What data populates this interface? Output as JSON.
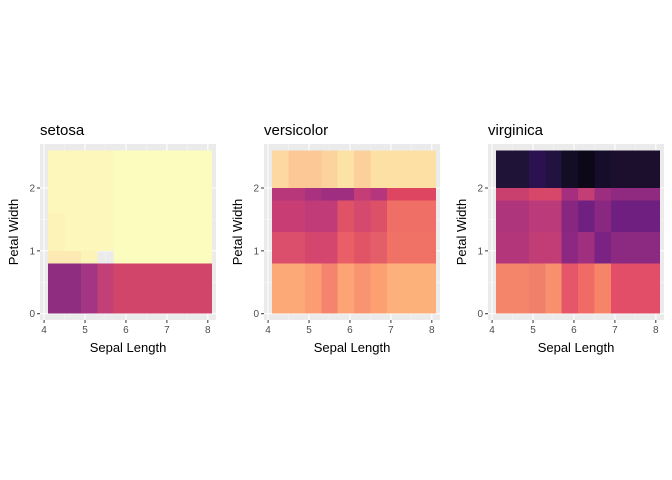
{
  "chart_data": [
    {
      "type": "heatmap",
      "title": "setosa",
      "xlabel": "Sepal Length",
      "ylabel": "Petal Width",
      "xticks": [
        4,
        5,
        6,
        7,
        8
      ],
      "yticks": [
        0,
        1,
        2
      ],
      "xlim": [
        3.9,
        8.2
      ],
      "ylim": [
        -0.1,
        2.7
      ],
      "x_bins": [
        4.1,
        4.5,
        4.9,
        5.3,
        5.7,
        6.1,
        6.5,
        6.9,
        7.3,
        7.7,
        8.1
      ],
      "y_bins": [
        0.8,
        1.3,
        1.8,
        2.6
      ],
      "grid": true,
      "cells": [
        {
          "x0": 4.1,
          "x1": 4.9,
          "y0": 0.0,
          "y1": 0.8,
          "color": "#8f2d81"
        },
        {
          "x0": 4.9,
          "x1": 5.3,
          "y0": 0.0,
          "y1": 0.8,
          "color": "#a33584"
        },
        {
          "x0": 5.3,
          "x1": 5.7,
          "y0": 0.0,
          "y1": 0.8,
          "color": "#c33f78"
        },
        {
          "x0": 5.7,
          "x1": 8.1,
          "y0": 0.0,
          "y1": 0.8,
          "color": "#d2456a"
        },
        {
          "x0": 4.1,
          "x1": 4.9,
          "y0": 0.8,
          "y1": 1.0,
          "color": "#fde9b3"
        },
        {
          "x0": 4.9,
          "x1": 5.3,
          "y0": 0.8,
          "y1": 1.0,
          "color": "#fcf3b8"
        },
        {
          "x0": 4.1,
          "x1": 4.5,
          "y0": 1.0,
          "y1": 1.6,
          "color": "#fdf2b7"
        },
        {
          "x0": 4.5,
          "x1": 5.7,
          "y0": 1.0,
          "y1": 1.6,
          "color": "#fdf7bb"
        },
        {
          "x0": 4.1,
          "x1": 5.7,
          "y0": 1.6,
          "y1": 2.6,
          "color": "#fdf7bb"
        },
        {
          "x0": 5.7,
          "x1": 8.1,
          "y0": 0.8,
          "y1": 2.6,
          "color": "#fdfcbf"
        }
      ]
    },
    {
      "type": "heatmap",
      "title": "versicolor",
      "xlabel": "Sepal Length",
      "ylabel": "Petal Width",
      "xticks": [
        4,
        5,
        6,
        7,
        8
      ],
      "yticks": [
        0,
        1,
        2
      ],
      "xlim": [
        3.9,
        8.2
      ],
      "ylim": [
        -0.1,
        2.7
      ],
      "x_bins": [
        4.1,
        4.5,
        4.9,
        5.3,
        5.7,
        6.1,
        6.5,
        6.9,
        7.3,
        7.7,
        8.1
      ],
      "y_bins": [
        0.8,
        1.3,
        1.8,
        2.6
      ],
      "grid": true,
      "cells": [
        {
          "x0": 4.1,
          "x1": 4.9,
          "y0": 0.0,
          "y1": 0.8,
          "color": "#fca977"
        },
        {
          "x0": 4.9,
          "x1": 5.3,
          "y0": 0.0,
          "y1": 0.8,
          "color": "#fb9c73"
        },
        {
          "x0": 5.3,
          "x1": 5.7,
          "y0": 0.0,
          "y1": 0.8,
          "color": "#f4846e"
        },
        {
          "x0": 5.7,
          "x1": 6.1,
          "y0": 0.0,
          "y1": 0.8,
          "color": "#fca476"
        },
        {
          "x0": 6.1,
          "x1": 6.5,
          "y0": 0.0,
          "y1": 0.8,
          "color": "#f99470"
        },
        {
          "x0": 6.5,
          "x1": 6.9,
          "y0": 0.0,
          "y1": 0.8,
          "color": "#fca072"
        },
        {
          "x0": 6.9,
          "x1": 8.1,
          "y0": 0.0,
          "y1": 0.8,
          "color": "#fdb17a"
        },
        {
          "x0": 4.1,
          "x1": 4.9,
          "y0": 0.8,
          "y1": 1.3,
          "color": "#db4f6c"
        },
        {
          "x0": 4.9,
          "x1": 5.7,
          "y0": 0.8,
          "y1": 1.3,
          "color": "#d4466e"
        },
        {
          "x0": 5.7,
          "x1": 6.1,
          "y0": 0.8,
          "y1": 1.3,
          "color": "#ea5f67"
        },
        {
          "x0": 6.1,
          "x1": 6.5,
          "y0": 0.8,
          "y1": 1.3,
          "color": "#e05466"
        },
        {
          "x0": 6.5,
          "x1": 6.9,
          "y0": 0.8,
          "y1": 1.3,
          "color": "#e35e68"
        },
        {
          "x0": 6.9,
          "x1": 8.1,
          "y0": 0.8,
          "y1": 1.3,
          "color": "#f07267"
        },
        {
          "x0": 4.1,
          "x1": 4.9,
          "y0": 1.3,
          "y1": 1.8,
          "color": "#c83d73"
        },
        {
          "x0": 4.9,
          "x1": 5.7,
          "y0": 1.3,
          "y1": 1.8,
          "color": "#c03b78"
        },
        {
          "x0": 5.7,
          "x1": 6.1,
          "y0": 1.3,
          "y1": 1.8,
          "color": "#e05366"
        },
        {
          "x0": 6.1,
          "x1": 6.5,
          "y0": 1.3,
          "y1": 1.8,
          "color": "#d4496d"
        },
        {
          "x0": 6.5,
          "x1": 6.9,
          "y0": 1.3,
          "y1": 1.8,
          "color": "#dc5168"
        },
        {
          "x0": 6.9,
          "x1": 8.1,
          "y0": 1.3,
          "y1": 1.8,
          "color": "#ef6e66"
        },
        {
          "x0": 4.1,
          "x1": 4.5,
          "y0": 1.8,
          "y1": 2.6,
          "color": "#fdd8a0"
        },
        {
          "x0": 4.5,
          "x1": 5.3,
          "y0": 1.8,
          "y1": 2.6,
          "color": "#fcc896"
        },
        {
          "x0": 5.3,
          "x1": 5.7,
          "y0": 1.8,
          "y1": 2.6,
          "color": "#fcd39c"
        },
        {
          "x0": 5.7,
          "x1": 6.1,
          "y0": 1.8,
          "y1": 2.6,
          "color": "#fde2a6"
        },
        {
          "x0": 6.1,
          "x1": 6.5,
          "y0": 1.8,
          "y1": 2.6,
          "color": "#fcd09b"
        },
        {
          "x0": 6.5,
          "x1": 8.1,
          "y0": 1.8,
          "y1": 2.6,
          "color": "#fde0a4"
        },
        {
          "x0": 4.1,
          "x1": 4.9,
          "y0": 1.8,
          "y1": 2.0,
          "color": "#b8367a"
        },
        {
          "x0": 4.9,
          "x1": 5.3,
          "y0": 1.8,
          "y1": 2.0,
          "color": "#a93180"
        },
        {
          "x0": 5.3,
          "x1": 6.1,
          "y0": 1.8,
          "y1": 2.0,
          "color": "#a02e80"
        },
        {
          "x0": 6.1,
          "x1": 6.5,
          "y0": 1.8,
          "y1": 2.0,
          "color": "#c43d76"
        },
        {
          "x0": 6.5,
          "x1": 6.9,
          "y0": 1.8,
          "y1": 2.0,
          "color": "#b5367c"
        },
        {
          "x0": 6.9,
          "x1": 8.1,
          "y0": 1.8,
          "y1": 2.0,
          "color": "#dd4560"
        }
      ]
    },
    {
      "type": "heatmap",
      "title": "virginica",
      "xlabel": "Sepal Length",
      "ylabel": "Petal Width",
      "xticks": [
        4,
        5,
        6,
        7,
        8
      ],
      "yticks": [
        0,
        1,
        2
      ],
      "xlim": [
        3.9,
        8.2
      ],
      "ylim": [
        -0.1,
        2.7
      ],
      "x_bins": [
        4.1,
        4.5,
        4.9,
        5.3,
        5.7,
        6.1,
        6.5,
        6.9,
        7.3,
        7.7,
        8.1
      ],
      "y_bins": [
        0.8,
        1.3,
        1.8,
        2.6
      ],
      "grid": true,
      "cells": [
        {
          "x0": 4.1,
          "x1": 4.9,
          "y0": 0.0,
          "y1": 0.8,
          "color": "#f4856b"
        },
        {
          "x0": 4.9,
          "x1": 5.3,
          "y0": 0.0,
          "y1": 0.8,
          "color": "#f1806b"
        },
        {
          "x0": 5.3,
          "x1": 5.7,
          "y0": 0.0,
          "y1": 0.8,
          "color": "#f8906d"
        },
        {
          "x0": 5.7,
          "x1": 6.1,
          "y0": 0.0,
          "y1": 0.8,
          "color": "#e55768"
        },
        {
          "x0": 6.1,
          "x1": 6.5,
          "y0": 0.0,
          "y1": 0.8,
          "color": "#f06b65"
        },
        {
          "x0": 6.5,
          "x1": 6.9,
          "y0": 0.0,
          "y1": 0.8,
          "color": "#f68467"
        },
        {
          "x0": 6.9,
          "x1": 8.1,
          "y0": 0.0,
          "y1": 0.8,
          "color": "#e24e67"
        },
        {
          "x0": 4.1,
          "x1": 4.9,
          "y0": 0.8,
          "y1": 1.3,
          "color": "#b3367b"
        },
        {
          "x0": 4.9,
          "x1": 5.7,
          "y0": 0.8,
          "y1": 1.3,
          "color": "#c23c76"
        },
        {
          "x0": 5.7,
          "x1": 6.1,
          "y0": 0.8,
          "y1": 1.3,
          "color": "#8c2881"
        },
        {
          "x0": 6.1,
          "x1": 6.5,
          "y0": 0.8,
          "y1": 1.3,
          "color": "#a02f7f"
        },
        {
          "x0": 6.5,
          "x1": 6.9,
          "y0": 0.8,
          "y1": 1.3,
          "color": "#7a2382"
        },
        {
          "x0": 6.9,
          "x1": 8.1,
          "y0": 0.8,
          "y1": 1.3,
          "color": "#8c2a81"
        },
        {
          "x0": 4.1,
          "x1": 4.9,
          "y0": 1.3,
          "y1": 1.8,
          "color": "#ae347c"
        },
        {
          "x0": 4.9,
          "x1": 5.7,
          "y0": 1.3,
          "y1": 1.8,
          "color": "#bb3a79"
        },
        {
          "x0": 5.7,
          "x1": 6.1,
          "y0": 1.3,
          "y1": 1.8,
          "color": "#872780"
        },
        {
          "x0": 6.1,
          "x1": 6.5,
          "y0": 1.3,
          "y1": 1.8,
          "color": "#6f2080"
        },
        {
          "x0": 6.5,
          "x1": 6.9,
          "y0": 1.3,
          "y1": 1.8,
          "color": "#8a2780"
        },
        {
          "x0": 6.9,
          "x1": 8.1,
          "y0": 1.3,
          "y1": 1.8,
          "color": "#6e1f80"
        },
        {
          "x0": 4.1,
          "x1": 4.9,
          "y0": 1.8,
          "y1": 2.0,
          "color": "#c9406f"
        },
        {
          "x0": 4.9,
          "x1": 5.7,
          "y0": 1.8,
          "y1": 2.0,
          "color": "#d7476a"
        },
        {
          "x0": 5.7,
          "x1": 6.1,
          "y0": 1.8,
          "y1": 2.0,
          "color": "#a52f7e"
        },
        {
          "x0": 6.1,
          "x1": 6.5,
          "y0": 1.8,
          "y1": 2.0,
          "color": "#c33e74"
        },
        {
          "x0": 6.5,
          "x1": 6.9,
          "y0": 1.8,
          "y1": 2.0,
          "color": "#9d2d7f"
        },
        {
          "x0": 6.9,
          "x1": 8.1,
          "y0": 1.8,
          "y1": 2.0,
          "color": "#8f2a80"
        },
        {
          "x0": 4.1,
          "x1": 4.9,
          "y0": 2.0,
          "y1": 2.6,
          "color": "#1f1338"
        },
        {
          "x0": 4.9,
          "x1": 5.3,
          "y0": 2.0,
          "y1": 2.6,
          "color": "#2c1150"
        },
        {
          "x0": 5.3,
          "x1": 5.7,
          "y0": 2.0,
          "y1": 2.6,
          "color": "#22123f"
        },
        {
          "x0": 5.7,
          "x1": 6.1,
          "y0": 2.0,
          "y1": 2.6,
          "color": "#130d26"
        },
        {
          "x0": 6.1,
          "x1": 6.5,
          "y0": 2.0,
          "y1": 2.6,
          "color": "#0c0818"
        },
        {
          "x0": 6.5,
          "x1": 6.9,
          "y0": 2.0,
          "y1": 2.6,
          "color": "#150d2a"
        },
        {
          "x0": 6.9,
          "x1": 8.1,
          "y0": 2.0,
          "y1": 2.6,
          "color": "#1b0f2d"
        }
      ]
    }
  ]
}
